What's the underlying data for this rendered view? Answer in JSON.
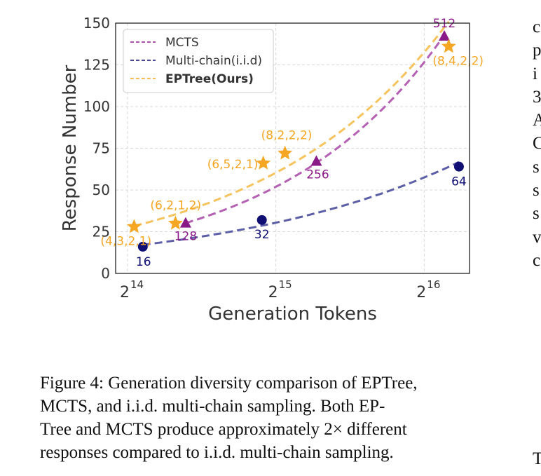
{
  "chart_data": {
    "type": "line",
    "xlabel": "Generation Tokens",
    "ylabel": "Response Number",
    "x_scale": "log2",
    "xlim": [
      15500,
      81000
    ],
    "ylim": [
      0,
      150
    ],
    "x_ticks": [
      {
        "value": 16384,
        "base": "2",
        "exp": "14"
      },
      {
        "value": 32768,
        "base": "2",
        "exp": "15"
      },
      {
        "value": 65536,
        "base": "2",
        "exp": "16"
      }
    ],
    "y_ticks": [
      0,
      25,
      50,
      75,
      100,
      125,
      150
    ],
    "grid": true,
    "legend_position": "top-left",
    "series": [
      {
        "name": "MCTS",
        "color": "#8B1A89",
        "line_color": "#B461B3",
        "marker": "triangle",
        "points": [
          {
            "x": 21500,
            "y": 30,
            "label": "128"
          },
          {
            "x": 39600,
            "y": 67,
            "label": "256"
          },
          {
            "x": 72000,
            "y": 142,
            "label": "512"
          }
        ]
      },
      {
        "name": "Multi-chain(i.i.d)",
        "color": "#0F0F74",
        "line_color": "#5C5EA6",
        "marker": "circle",
        "points": [
          {
            "x": 17600,
            "y": 16,
            "label": "16"
          },
          {
            "x": 30700,
            "y": 32,
            "label": "32"
          },
          {
            "x": 77100,
            "y": 64,
            "label": "64"
          }
        ]
      },
      {
        "name": "EPTree(Ours)",
        "color": "#F5A623",
        "line_color": "#F5C45E",
        "marker": "star",
        "legend_bold": true,
        "points": [
          {
            "x": 16900,
            "y": 28,
            "label": "(4,3,2,1)"
          },
          {
            "x": 20500,
            "y": 30,
            "label": "(6,2,1,2)"
          },
          {
            "x": 30900,
            "y": 66,
            "label": "(6,5,2,1)"
          },
          {
            "x": 34200,
            "y": 72,
            "label": "(8,2,2,2)"
          },
          {
            "x": 73500,
            "y": 136,
            "label": "(8,4,2,2)"
          }
        ]
      }
    ]
  },
  "caption": {
    "lines": [
      "Figure 4: Generation diversity comparison of EPTree,",
      "MCTS, and i.i.d.  multi-chain sampling.  Both EP-",
      "Tree and MCTS produce approximately 2× different",
      "responses compared to i.i.d. multi-chain sampling."
    ]
  },
  "side_text": {
    "lines": [
      "c",
      "p",
      "i",
      "3",
      "A",
      "C",
      "s",
      "s",
      "s",
      "v",
      "c"
    ],
    "bottom": "T"
  }
}
